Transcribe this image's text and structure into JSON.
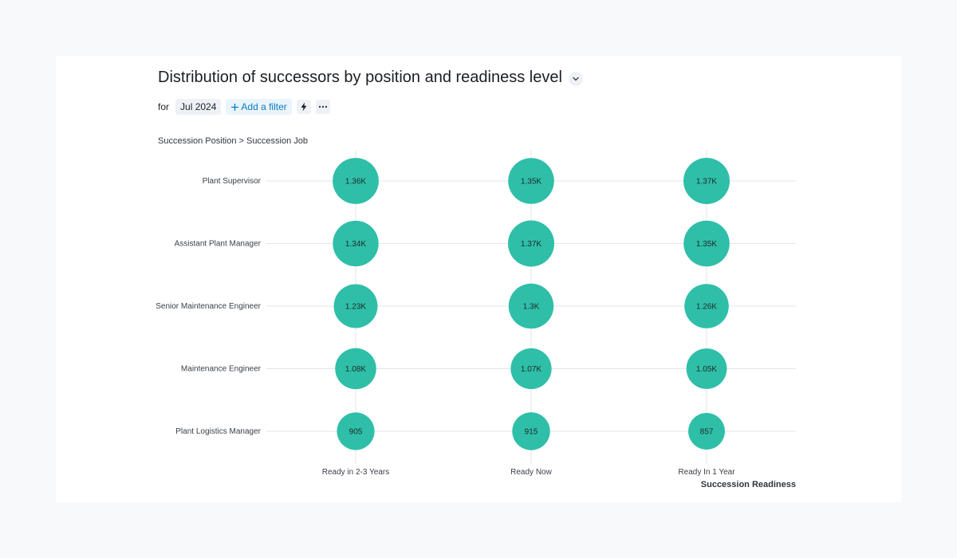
{
  "header": {
    "title": "Distribution of successors by position and readiness level",
    "for_label": "for",
    "period_chip": "Jul 2024",
    "add_filter_label": "Add a filter"
  },
  "colors": {
    "bubble": "#2fbfa8",
    "grid": "#e3e6ea",
    "accent_link": "#0b7cc1"
  },
  "icons": {
    "title_dropdown": "chevron-down-icon",
    "add_filter": "plus-icon",
    "insights": "lightning-icon",
    "more": "more-dots-icon"
  },
  "chart_data": {
    "type": "bubble-matrix",
    "ylabel": "Succession Position > Succession Job",
    "xlabel": "Succession Readiness",
    "categories_y": [
      "Plant Supervisor",
      "Assistant Plant Manager",
      "Senior Maintenance Engineer",
      "Maintenance Engineer",
      "Plant Logistics Manager"
    ],
    "categories_x": [
      "Ready in 2-3 Years",
      "Ready Now",
      "Ready In 1 Year"
    ],
    "values": [
      [
        1360,
        1350,
        1370
      ],
      [
        1340,
        1370,
        1350
      ],
      [
        1230,
        1300,
        1260
      ],
      [
        1080,
        1070,
        1050
      ],
      [
        905,
        915,
        857
      ]
    ],
    "labels": [
      [
        "1.36K",
        "1.35K",
        "1.37K"
      ],
      [
        "1.34K",
        "1.37K",
        "1.35K"
      ],
      [
        "1.23K",
        "1.3K",
        "1.26K"
      ],
      [
        "1.08K",
        "1.07K",
        "1.05K"
      ],
      [
        "905",
        "915",
        "857"
      ]
    ],
    "grid": true
  }
}
